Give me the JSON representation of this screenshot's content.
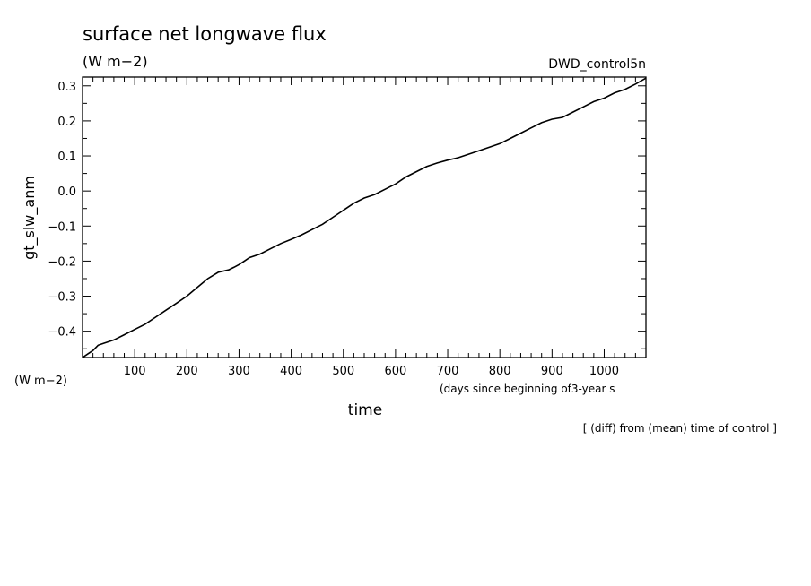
{
  "chart_data": {
    "type": "line",
    "title": "surface net longwave flux",
    "subtitle": "(W m−2)",
    "run_label": "DWD_control5n",
    "ylabel": "gt_slw_anm",
    "yunit": "(W m−2)",
    "xlabel": "time",
    "xunit": "(days since beginning of3-year s",
    "footnote": "[ (diff) from (mean) time of control ]",
    "xlim": [
      0,
      1080
    ],
    "ylim": [
      -0.475,
      0.325
    ],
    "xticks": [
      100,
      200,
      300,
      400,
      500,
      600,
      700,
      800,
      900,
      1000
    ],
    "xtick_labels": [
      "100",
      "200",
      "300",
      "400",
      "500",
      "600",
      "700",
      "800",
      "900",
      "1000"
    ],
    "yticks": [
      -0.4,
      -0.3,
      -0.2,
      -0.1,
      0.0,
      0.1,
      0.2,
      0.3
    ],
    "ytick_labels": [
      "−0.4",
      "−0.3",
      "−0.2",
      "−0.1",
      "0.0",
      "0.1",
      "0.2",
      "0.3"
    ],
    "grid": false,
    "line_color": "#000000",
    "series": [
      {
        "x": [
          0,
          10,
          20,
          30,
          40,
          60,
          80,
          100,
          120,
          140,
          160,
          180,
          200,
          220,
          240,
          260,
          280,
          290,
          300,
          310,
          320,
          340,
          360,
          380,
          400,
          420,
          440,
          460,
          480,
          500,
          520,
          540,
          560,
          580,
          600,
          620,
          640,
          660,
          680,
          700,
          720,
          740,
          760,
          780,
          800,
          820,
          840,
          860,
          880,
          900,
          920,
          940,
          960,
          980,
          1000,
          1020,
          1040,
          1060,
          1080
        ],
        "y": [
          -0.475,
          -0.465,
          -0.455,
          -0.44,
          -0.435,
          -0.425,
          -0.41,
          -0.395,
          -0.38,
          -0.36,
          -0.34,
          -0.32,
          -0.3,
          -0.275,
          -0.25,
          -0.232,
          -0.225,
          -0.218,
          -0.21,
          -0.2,
          -0.19,
          -0.18,
          -0.165,
          -0.15,
          -0.138,
          -0.125,
          -0.11,
          -0.095,
          -0.075,
          -0.055,
          -0.035,
          -0.02,
          -0.01,
          0.005,
          0.02,
          0.04,
          0.055,
          0.07,
          0.08,
          0.088,
          0.095,
          0.105,
          0.115,
          0.125,
          0.135,
          0.15,
          0.165,
          0.18,
          0.195,
          0.205,
          0.21,
          0.225,
          0.24,
          0.255,
          0.265,
          0.28,
          0.29,
          0.305,
          0.322
        ]
      }
    ]
  }
}
